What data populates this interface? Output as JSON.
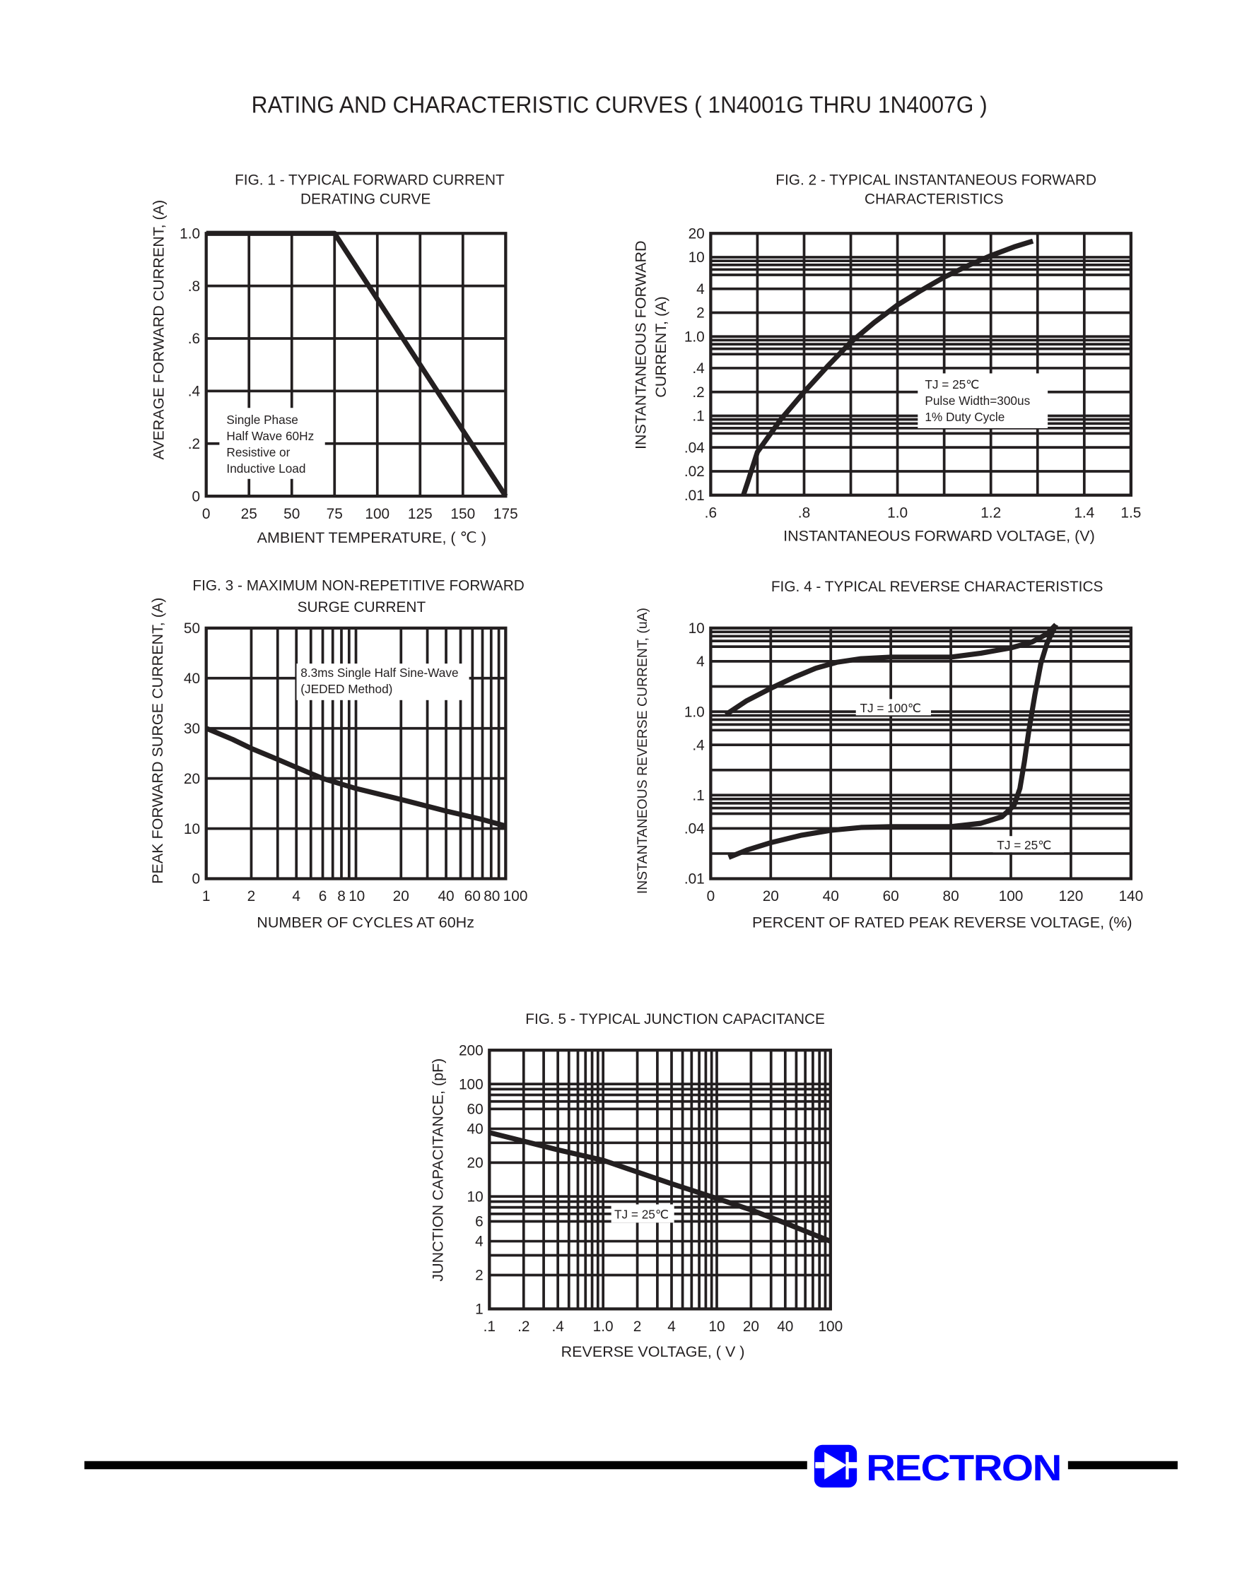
{
  "page_title": "RATING AND CHARACTERISTIC CURVES ( 1N4001G THRU 1N4007G )",
  "logo": {
    "text": "RECTRON",
    "color": "#0000ff"
  },
  "chart_data": [
    {
      "type": "line",
      "title": [
        "FIG. 1 - TYPICAL FORWARD CURRENT",
        "DERATING CURVE"
      ],
      "xlabel": "AMBIENT TEMPERATURE, ( ℃ )",
      "ylabel": [
        "AVERAGE FORWARD  CURRENT, (A)"
      ],
      "xscale": "linear",
      "yscale": "linear",
      "xlim": [
        0,
        175
      ],
      "ylim": [
        0,
        1.0
      ],
      "xticks": [
        {
          "v": 0,
          "label": "0"
        },
        {
          "v": 25,
          "label": "25"
        },
        {
          "v": 50,
          "label": "50"
        },
        {
          "v": 75,
          "label": "75"
        },
        {
          "v": 100,
          "label": "100"
        },
        {
          "v": 125,
          "label": "125"
        },
        {
          "v": 150,
          "label": "150"
        },
        {
          "v": 175,
          "label": "175"
        }
      ],
      "yticks": [
        {
          "v": 0,
          "label": "0"
        },
        {
          "v": 0.2,
          "label": ".2"
        },
        {
          "v": 0.4,
          "label": ".4"
        },
        {
          "v": 0.6,
          "label": ".6"
        },
        {
          "v": 0.8,
          "label": ".8"
        },
        {
          "v": 1.0,
          "label": "1.0"
        }
      ],
      "grid": true,
      "annotation": [
        "Single Phase",
        "Half Wave 60Hz",
        "Resistive or",
        "Inductive Load"
      ],
      "series": [
        {
          "x": [
            0,
            75,
            175
          ],
          "y": [
            1.0,
            1.0,
            0
          ]
        }
      ]
    },
    {
      "type": "line",
      "title": [
        "FIG. 2 - TYPICAL INSTANTANEOUS FORWARD",
        "CHARACTERISTICS"
      ],
      "xlabel": "INSTANTANEOUS FORWARD VOLTAGE, (V)",
      "ylabel": [
        "INSTANTANEOUS FORWARD",
        "CURRENT, (A)"
      ],
      "xscale": "linear",
      "yscale": "log",
      "xlim": [
        0.6,
        1.5
      ],
      "ylim": [
        0.01,
        20
      ],
      "xticks": [
        {
          "v": 0.6,
          "label": ".6"
        },
        {
          "v": 0.8,
          "label": ".8"
        },
        {
          "v": 1.0,
          "label": "1.0"
        },
        {
          "v": 1.2,
          "label": "1.2"
        },
        {
          "v": 1.4,
          "label": "1.4"
        },
        {
          "v": 1.5,
          "label": "1.5"
        }
      ],
      "yticks": [
        {
          "v": 0.01,
          "label": ".01"
        },
        {
          "v": 0.02,
          "label": ".02"
        },
        {
          "v": 0.04,
          "label": ".04"
        },
        {
          "v": 0.1,
          "label": ".1"
        },
        {
          "v": 0.2,
          "label": ".2"
        },
        {
          "v": 0.4,
          "label": ".4"
        },
        {
          "v": 1,
          "label": "1.0"
        },
        {
          "v": 2,
          "label": "2"
        },
        {
          "v": 4,
          "label": "4"
        },
        {
          "v": 10,
          "label": "10"
        },
        {
          "v": 20,
          "label": "20"
        }
      ],
      "grid": true,
      "annotation": [
        "TJ = 25℃",
        "Pulse Width=300us",
        "1% Duty Cycle"
      ],
      "series": [
        {
          "x": [
            0.67,
            0.68,
            0.7,
            0.75,
            0.8,
            0.85,
            0.9,
            0.95,
            1.0,
            1.05,
            1.1,
            1.15,
            1.2,
            1.25,
            1.29
          ],
          "y": [
            0.01,
            0.015,
            0.035,
            0.09,
            0.2,
            0.42,
            0.85,
            1.5,
            2.5,
            3.8,
            5.6,
            7.8,
            10.5,
            13.5,
            16
          ]
        }
      ]
    },
    {
      "type": "line",
      "title": [
        "FIG. 3 - MAXIMUM NON-REPETITIVE FORWARD",
        "SURGE CURRENT"
      ],
      "xlabel": "NUMBER OF CYCLES AT 60Hz",
      "ylabel": [
        "PEAK FORWARD SURGE CURRENT, (A)"
      ],
      "xscale": "log",
      "yscale": "linear",
      "xlim": [
        1,
        100
      ],
      "ylim": [
        0,
        50
      ],
      "xticks": [
        {
          "v": 1,
          "label": "1"
        },
        {
          "v": 2,
          "label": "2"
        },
        {
          "v": 4,
          "label": "4"
        },
        {
          "v": 6,
          "label": "6"
        },
        {
          "v": 8,
          "label": "8"
        },
        {
          "v": 10,
          "label": "10"
        },
        {
          "v": 20,
          "label": "20"
        },
        {
          "v": 40,
          "label": "40"
        },
        {
          "v": 60,
          "label": "60"
        },
        {
          "v": 80,
          "label": "80"
        },
        {
          "v": 100,
          "label": "100"
        }
      ],
      "yticks": [
        {
          "v": 0,
          "label": "0"
        },
        {
          "v": 10,
          "label": "10"
        },
        {
          "v": 20,
          "label": "20"
        },
        {
          "v": 30,
          "label": "30"
        },
        {
          "v": 40,
          "label": "40"
        },
        {
          "v": 50,
          "label": "50"
        }
      ],
      "grid": true,
      "annotation": [
        "8.3ms Single Half Sine-Wave",
        "(JEDED Method)"
      ],
      "series": [
        {
          "x": [
            1,
            1.5,
            2,
            3,
            4,
            6,
            10,
            20,
            40,
            70,
            100
          ],
          "y": [
            30,
            27.8,
            26,
            23.8,
            22.2,
            20,
            18,
            15.8,
            13.5,
            11.8,
            10.5
          ]
        }
      ]
    },
    {
      "type": "line",
      "title": [
        "FIG. 4 - TYPICAL REVERSE CHARACTERISTICS"
      ],
      "xlabel": "PERCENT OF RATED PEAK REVERSE VOLTAGE, (%)",
      "ylabel": [
        "INSTANTANEOUS REVERSE CURRENT, (uA)"
      ],
      "xscale": "linear",
      "yscale": "log",
      "xlim": [
        0,
        140
      ],
      "ylim": [
        0.01,
        10
      ],
      "xticks": [
        {
          "v": 0,
          "label": "0"
        },
        {
          "v": 20,
          "label": "20"
        },
        {
          "v": 40,
          "label": "40"
        },
        {
          "v": 60,
          "label": "60"
        },
        {
          "v": 80,
          "label": "80"
        },
        {
          "v": 100,
          "label": "100"
        },
        {
          "v": 120,
          "label": "120"
        },
        {
          "v": 140,
          "label": "140"
        }
      ],
      "yticks": [
        {
          "v": 0.01,
          "label": ".01"
        },
        {
          "v": 0.04,
          "label": ".04"
        },
        {
          "v": 0.1,
          "label": ".1"
        },
        {
          "v": 0.4,
          "label": ".4"
        },
        {
          "v": 1,
          "label": "1.0"
        },
        {
          "v": 4,
          "label": "4"
        },
        {
          "v": 10,
          "label": "10"
        }
      ],
      "grid": true,
      "series": [
        {
          "name": "TJ = 100℃",
          "x": [
            5,
            12,
            20,
            28,
            35,
            42,
            50,
            60,
            70,
            80,
            90,
            100,
            107,
            112,
            115
          ],
          "y": [
            0.92,
            1.35,
            1.9,
            2.6,
            3.3,
            3.9,
            4.3,
            4.5,
            4.5,
            4.5,
            5.0,
            5.8,
            6.8,
            8.5,
            11
          ]
        },
        {
          "name": "TJ = 25℃",
          "x": [
            6,
            12,
            20,
            30,
            40,
            50,
            60,
            70,
            80,
            90,
            97,
            101,
            103,
            104.5,
            106,
            108,
            110,
            112,
            115
          ],
          "y": [
            0.018,
            0.022,
            0.027,
            0.033,
            0.038,
            0.041,
            0.042,
            0.042,
            0.042,
            0.046,
            0.055,
            0.075,
            0.12,
            0.25,
            0.6,
            1.6,
            3.8,
            6.5,
            11
          ]
        }
      ]
    },
    {
      "type": "line",
      "title": [
        "FIG. 5 - TYPICAL JUNCTION CAPACITANCE"
      ],
      "xlabel": "REVERSE VOLTAGE, ( V )",
      "ylabel": [
        "JUNCTION CAPACITANCE, (pF)"
      ],
      "xscale": "log",
      "yscale": "log",
      "xlim": [
        0.1,
        100
      ],
      "ylim": [
        1,
        200
      ],
      "xticks": [
        {
          "v": 0.1,
          "label": ".1"
        },
        {
          "v": 0.2,
          "label": ".2"
        },
        {
          "v": 0.4,
          "label": ".4"
        },
        {
          "v": 1,
          "label": "1.0"
        },
        {
          "v": 2,
          "label": "2"
        },
        {
          "v": 4,
          "label": "4"
        },
        {
          "v": 10,
          "label": "10"
        },
        {
          "v": 20,
          "label": "20"
        },
        {
          "v": 40,
          "label": "40"
        },
        {
          "v": 100,
          "label": "100"
        }
      ],
      "yticks": [
        {
          "v": 1,
          "label": "1"
        },
        {
          "v": 2,
          "label": "2"
        },
        {
          "v": 4,
          "label": "4"
        },
        {
          "v": 6,
          "label": "6"
        },
        {
          "v": 10,
          "label": "10"
        },
        {
          "v": 20,
          "label": "20"
        },
        {
          "v": 40,
          "label": "40"
        },
        {
          "v": 60,
          "label": "60"
        },
        {
          "v": 100,
          "label": "100"
        },
        {
          "v": 200,
          "label": "200"
        }
      ],
      "grid": true,
      "annotation": [
        "TJ = 25℃"
      ],
      "series": [
        {
          "x": [
            0.1,
            0.2,
            0.4,
            1,
            2,
            4,
            10,
            20,
            40,
            100
          ],
          "y": [
            37,
            31,
            26,
            21,
            16.5,
            13,
            9.6,
            7.6,
            5.8,
            4
          ]
        }
      ]
    }
  ]
}
